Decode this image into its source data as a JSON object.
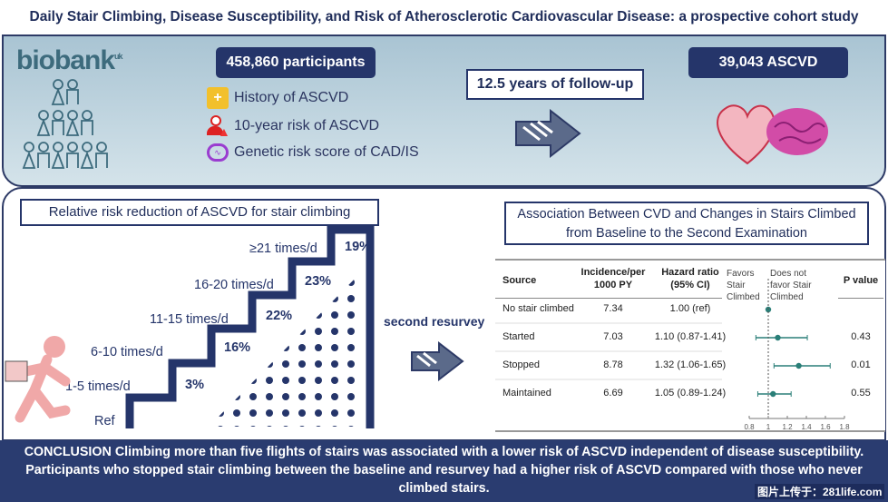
{
  "title": "Daily Stair Climbing, Disease Susceptibility, and Risk of Atherosclerotic Cardiovascular Disease: a prospective cohort study",
  "top": {
    "logo": "biobank",
    "logo_suffix": "uk",
    "participants": "458,860 participants",
    "features": [
      {
        "icon": "folder-plus-icon",
        "label": "History of ASCVD"
      },
      {
        "icon": "person-warning-icon",
        "label": "10-year risk of ASCVD"
      },
      {
        "icon": "dna-icon",
        "label": "Genetic risk score of CAD/IS"
      }
    ],
    "followup": "12.5 years of follow-up",
    "outcome": "39,043 ASCVD"
  },
  "left": {
    "heading": "Relative risk reduction of ASCVD for stair climbing",
    "steps": [
      {
        "label": "Ref",
        "pct": ""
      },
      {
        "label": "1-5 times/d",
        "pct": "3%"
      },
      {
        "label": "6-10 times/d",
        "pct": "16%"
      },
      {
        "label": "11-15 times/d",
        "pct": "22%"
      },
      {
        "label": "16-20 times/d",
        "pct": "23%"
      },
      {
        "label": "≥21 times/d",
        "pct": "19%"
      }
    ],
    "resurvey": "second resurvey"
  },
  "right": {
    "heading": "Association Between CVD and Changes in Stairs Climbed from Baseline to the Second Examination",
    "columns": {
      "source": "Source",
      "incidence": "Incidence/per 1000 PY",
      "hr": "Hazard ratio (95% CI)",
      "favors": "Favors Stair Climbed",
      "not_favor": "Does not favor Stair Climbed",
      "p": "P value"
    },
    "rows": [
      {
        "source": "No stair climbed",
        "incidence": "7.34",
        "hr_text": "1.00 (ref)",
        "hr": 1.0,
        "lo": 1.0,
        "hi": 1.0,
        "p": ""
      },
      {
        "source": "Started",
        "incidence": "7.03",
        "hr_text": "1.10 (0.87-1.41)",
        "hr": 1.1,
        "lo": 0.87,
        "hi": 1.41,
        "p": "0.43"
      },
      {
        "source": "Stopped",
        "incidence": "8.78",
        "hr_text": "1.32 (1.06-1.65)",
        "hr": 1.32,
        "lo": 1.06,
        "hi": 1.65,
        "p": "0.01"
      },
      {
        "source": "Maintained",
        "incidence": "6.69",
        "hr_text": "1.05 (0.89-1.24)",
        "hr": 1.05,
        "lo": 0.89,
        "hi": 1.24,
        "p": "0.55"
      }
    ],
    "axis_ticks": [
      "0.8",
      "1",
      "1.2",
      "1.4",
      "1.6",
      "1.8"
    ],
    "axis_range": [
      0.8,
      1.8
    ],
    "marker_color": "#2a7f78"
  },
  "conclusion": "CONCLUSION Climbing more than five flights of stairs was associated with a lower risk of ASCVD  independent of disease susceptibility. Participants who stopped stair climbing between the baseline and resurvey had a higher risk of ASCVD compared with those who never climbed stairs.",
  "watermark": "图片上传于：281life.com"
}
